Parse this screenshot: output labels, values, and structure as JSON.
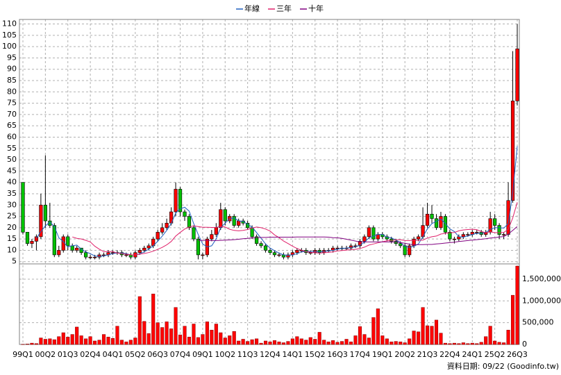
{
  "chart_data": {
    "type": "candlestick",
    "categories": [
      "99Q1",
      null,
      null,
      null,
      null,
      "00Q2",
      null,
      null,
      null,
      null,
      "01Q3",
      null,
      null,
      null,
      null,
      "02Q4",
      null,
      null,
      null,
      null,
      "04Q1",
      null,
      null,
      null,
      null,
      "05Q2",
      null,
      null,
      null,
      null,
      "06Q3",
      null,
      null,
      null,
      null,
      "07Q4",
      null,
      null,
      null,
      null,
      "09Q1",
      null,
      null,
      null,
      null,
      "10Q2",
      null,
      null,
      null,
      null,
      "11Q3",
      null,
      null,
      null,
      null,
      "12Q4",
      null,
      null,
      null,
      null,
      "14Q1",
      null,
      null,
      null,
      null,
      "15Q2",
      null,
      null,
      null,
      null,
      "16Q3",
      null,
      null,
      null,
      null,
      "17Q4",
      null,
      null,
      null,
      null,
      "19Q1",
      null,
      null,
      null,
      null,
      "20Q2",
      null,
      null,
      null,
      null,
      "21Q3",
      null,
      null,
      null,
      null,
      "22Q4",
      null,
      null,
      null,
      null,
      "24Q1",
      null,
      null,
      null,
      null,
      "25Q2",
      null,
      null,
      null,
      null,
      "26Q3"
    ],
    "open": [
      40,
      18,
      13,
      14,
      16,
      30,
      23,
      21,
      8,
      10,
      16,
      12,
      10,
      11,
      9,
      7,
      7,
      7,
      8,
      8,
      9,
      9,
      9,
      8,
      8,
      7,
      9,
      10,
      11,
      12,
      15,
      18,
      20,
      22,
      27,
      37,
      27,
      25,
      20,
      15,
      8,
      8,
      15,
      17,
      20,
      28,
      23,
      25,
      21,
      23,
      22,
      20,
      16,
      13,
      12,
      10,
      9,
      8,
      8,
      7,
      8,
      9,
      10,
      10,
      9,
      9,
      10,
      9,
      10,
      10,
      11,
      11,
      11,
      11,
      12,
      12,
      14,
      16,
      20,
      15,
      17,
      16,
      15,
      14,
      13,
      12,
      8,
      12,
      15,
      16,
      21,
      26,
      24,
      20,
      25,
      18,
      15,
      15,
      16,
      17,
      17,
      18,
      18,
      17,
      18,
      24,
      21,
      17,
      17,
      32,
      76
    ],
    "high": [
      40,
      18,
      15,
      17,
      35,
      52,
      31,
      22,
      12,
      17,
      17,
      13,
      12,
      11,
      10,
      8,
      8,
      9,
      9,
      10,
      10,
      10,
      10,
      9,
      9,
      10,
      11,
      12,
      13,
      16,
      19,
      22,
      24,
      29,
      40,
      38,
      28,
      26,
      21,
      16,
      9,
      16,
      19,
      22,
      31,
      29,
      26,
      26,
      24,
      24,
      23,
      21,
      17,
      14,
      13,
      11,
      10,
      9,
      9,
      9,
      10,
      11,
      11,
      11,
      10,
      11,
      11,
      11,
      11,
      12,
      12,
      12,
      12,
      13,
      13,
      15,
      17,
      21,
      21,
      18,
      18,
      17,
      16,
      15,
      14,
      13,
      13,
      16,
      17,
      29,
      31,
      30,
      26,
      27,
      26,
      19,
      16,
      17,
      18,
      18,
      19,
      19,
      19,
      19,
      27,
      26,
      22,
      18,
      40,
      98,
      110
    ],
    "low": [
      17,
      12,
      11,
      10,
      15,
      20,
      20,
      7,
      7,
      9,
      10,
      9,
      9,
      8,
      6,
      6,
      6,
      6,
      7,
      7,
      8,
      8,
      7,
      7,
      6,
      6,
      8,
      9,
      10,
      11,
      14,
      17,
      19,
      21,
      25,
      25,
      23,
      19,
      14,
      6,
      6,
      7,
      14,
      16,
      19,
      21,
      22,
      20,
      20,
      21,
      19,
      15,
      12,
      11,
      9,
      8,
      7,
      7,
      6,
      6,
      7,
      8,
      9,
      8,
      8,
      8,
      8,
      8,
      9,
      9,
      10,
      10,
      10,
      10,
      11,
      11,
      13,
      15,
      14,
      14,
      15,
      14,
      13,
      12,
      11,
      7,
      7,
      11,
      14,
      15,
      20,
      22,
      19,
      19,
      17,
      14,
      13,
      14,
      15,
      16,
      16,
      17,
      16,
      16,
      17,
      19,
      15,
      15,
      16,
      31,
      74
    ],
    "close": [
      18,
      13,
      14,
      16,
      30,
      23,
      21,
      8,
      10,
      16,
      12,
      10,
      11,
      9,
      7,
      7,
      7,
      8,
      8,
      9,
      9,
      9,
      8,
      8,
      7,
      9,
      10,
      11,
      12,
      15,
      18,
      20,
      22,
      27,
      37,
      27,
      25,
      20,
      15,
      8,
      8,
      15,
      17,
      20,
      28,
      23,
      25,
      21,
      23,
      22,
      20,
      16,
      13,
      12,
      10,
      9,
      8,
      8,
      7,
      8,
      9,
      10,
      10,
      9,
      9,
      10,
      9,
      10,
      10,
      11,
      11,
      11,
      11,
      12,
      12,
      14,
      16,
      20,
      15,
      17,
      16,
      15,
      14,
      13,
      12,
      8,
      12,
      15,
      16,
      21,
      26,
      24,
      20,
      25,
      18,
      15,
      15,
      16,
      17,
      17,
      18,
      18,
      17,
      18,
      24,
      21,
      17,
      17,
      32,
      76,
      99
    ],
    "up_color": "#ff0000",
    "down_color": "#00c000",
    "ylim": [
      4,
      112
    ],
    "yticks": [
      5,
      10,
      15,
      20,
      25,
      30,
      35,
      40,
      45,
      50,
      55,
      60,
      65,
      70,
      75,
      80,
      85,
      90,
      95,
      100,
      105,
      110
    ],
    "grid": true,
    "lines": [
      {
        "name": "年線",
        "color": "#1f5fbf",
        "values": [
          null,
          null,
          null,
          15.3,
          18.3,
          20.8,
          22.5,
          20.5,
          15.5,
          13.8,
          11.5,
          12,
          12.3,
          10.5,
          9.3,
          8.5,
          7.5,
          7.3,
          7.5,
          8,
          8.5,
          8.8,
          8.8,
          8.5,
          8,
          8,
          8.5,
          9.3,
          10.5,
          12,
          14,
          16.3,
          18.8,
          21.8,
          26.5,
          28.3,
          29,
          27.3,
          21.8,
          17,
          12.8,
          11.5,
          12,
          15,
          20,
          22,
          24,
          24.3,
          23,
          22.8,
          21.5,
          20.3,
          17.8,
          15.3,
          12.8,
          11,
          9.8,
          8.8,
          8,
          7.8,
          8,
          8.5,
          9.3,
          9.5,
          9.5,
          9.5,
          9.3,
          9.5,
          9.8,
          10,
          10.5,
          10.8,
          11,
          11.3,
          11.5,
          12.3,
          13.5,
          15.5,
          16.3,
          17,
          17,
          15.8,
          15.5,
          14.5,
          13.5,
          11.8,
          11.3,
          11.8,
          12.8,
          16,
          19.5,
          21.8,
          22.8,
          23.8,
          21.8,
          19.5,
          18.3,
          16,
          15.8,
          16.3,
          17,
          17.5,
          17.5,
          17.8,
          19.3,
          20,
          20,
          19.8,
          21.8,
          35.5,
          56
        ]
      },
      {
        "name": "三年",
        "color": "#e0206a",
        "values": [
          null,
          null,
          null,
          null,
          null,
          null,
          null,
          null,
          null,
          null,
          null,
          15.9,
          15.3,
          15,
          14.4,
          13.7,
          11.8,
          10.5,
          9.4,
          9.5,
          9.4,
          8.8,
          8.5,
          8.3,
          8,
          8,
          8.3,
          8.6,
          9,
          9.6,
          10.4,
          11.3,
          12.4,
          13.9,
          16.3,
          17.9,
          19.4,
          20.3,
          20.8,
          20.5,
          20.2,
          20.2,
          20.1,
          20.1,
          20.6,
          20.3,
          19.3,
          18.8,
          18.6,
          18.8,
          19.2,
          19.8,
          20.3,
          20,
          19.4,
          18.5,
          16.8,
          15.6,
          14.1,
          13,
          11.8,
          10.8,
          10,
          9.4,
          9.1,
          8.9,
          8.8,
          8.9,
          9.1,
          9.3,
          9.7,
          9.9,
          10.1,
          10.3,
          10.4,
          10.8,
          11.4,
          12.3,
          12.8,
          13.3,
          13.8,
          14.2,
          14.4,
          14.6,
          14.7,
          14.3,
          14.3,
          14.4,
          14.4,
          14.5,
          15.4,
          16,
          16.3,
          17.2,
          17.5,
          17.7,
          17.9,
          18.6,
          19,
          19.2,
          19.3,
          19.1,
          18.3,
          17.8,
          18.2,
          17.8,
          17.8,
          17.9,
          19.3,
          24.3,
          31.2
        ]
      },
      {
        "name": "十年",
        "color": "#800080",
        "values": [
          null,
          null,
          null,
          null,
          null,
          null,
          null,
          null,
          null,
          null,
          null,
          null,
          null,
          null,
          null,
          null,
          null,
          null,
          null,
          null,
          null,
          null,
          null,
          null,
          null,
          null,
          null,
          null,
          null,
          null,
          null,
          null,
          null,
          null,
          null,
          null,
          null,
          null,
          null,
          14.4,
          14.4,
          14.4,
          14.3,
          14.3,
          14.4,
          14.5,
          14.6,
          14.7,
          14.9,
          15.1,
          15.3,
          15.5,
          15.6,
          15.7,
          15.7,
          15.8,
          15.8,
          15.8,
          15.8,
          15.8,
          15.8,
          15.9,
          15.9,
          15.9,
          15.9,
          15.9,
          15.9,
          15.9,
          15.8,
          15.6,
          15.5,
          15.3,
          14.9,
          14.5,
          14.1,
          13.7,
          13.7,
          13.7,
          13.7,
          13.7,
          13.7,
          13.7,
          13.7,
          13.7,
          13.4,
          13.1,
          12.7,
          12.4,
          12.5,
          12.5,
          12.6,
          12.6,
          12.8,
          13,
          13.2,
          13.4,
          13.6,
          13.9,
          14.1,
          14.3,
          14.5,
          14.7,
          14.9,
          15.1,
          15.4,
          15.6,
          15.9,
          16.1,
          17.2,
          18.8,
          20.5
        ]
      }
    ],
    "volume": {
      "color": "#ff0000",
      "values": [
        5000,
        10000,
        30000,
        20000,
        150000,
        120000,
        130000,
        110000,
        180000,
        270000,
        170000,
        230000,
        400000,
        200000,
        130000,
        180000,
        80000,
        100000,
        230000,
        170000,
        140000,
        420000,
        100000,
        60000,
        100000,
        150000,
        1100000,
        530000,
        250000,
        1160000,
        500000,
        390000,
        520000,
        360000,
        850000,
        220000,
        420000,
        170000,
        470000,
        160000,
        230000,
        520000,
        330000,
        470000,
        270000,
        150000,
        200000,
        300000,
        80000,
        120000,
        70000,
        110000,
        130000,
        30000,
        80000,
        60000,
        90000,
        60000,
        40000,
        70000,
        130000,
        180000,
        130000,
        100000,
        160000,
        120000,
        280000,
        100000,
        60000,
        90000,
        50000,
        70000,
        120000,
        60000,
        200000,
        410000,
        230000,
        150000,
        620000,
        820000,
        200000,
        130000,
        60000,
        70000,
        60000,
        40000,
        130000,
        310000,
        290000,
        850000,
        430000,
        420000,
        560000,
        260000,
        30000,
        20000,
        30000,
        20000,
        40000,
        20000,
        30000,
        20000,
        50000,
        180000,
        420000,
        80000,
        50000,
        40000,
        330000,
        1130000,
        1800000
      ],
      "ylim": [
        0,
        1850000
      ],
      "yticks": [
        0,
        {
          "value": 500000,
          "label": "500,000"
        },
        {
          "value": 1000000,
          "label": "1,000,000"
        },
        {
          "value": 1500000,
          "label": "1,500,000"
        }
      ]
    },
    "footer": "資料日期: 09/22 (Goodinfo.tw)"
  }
}
